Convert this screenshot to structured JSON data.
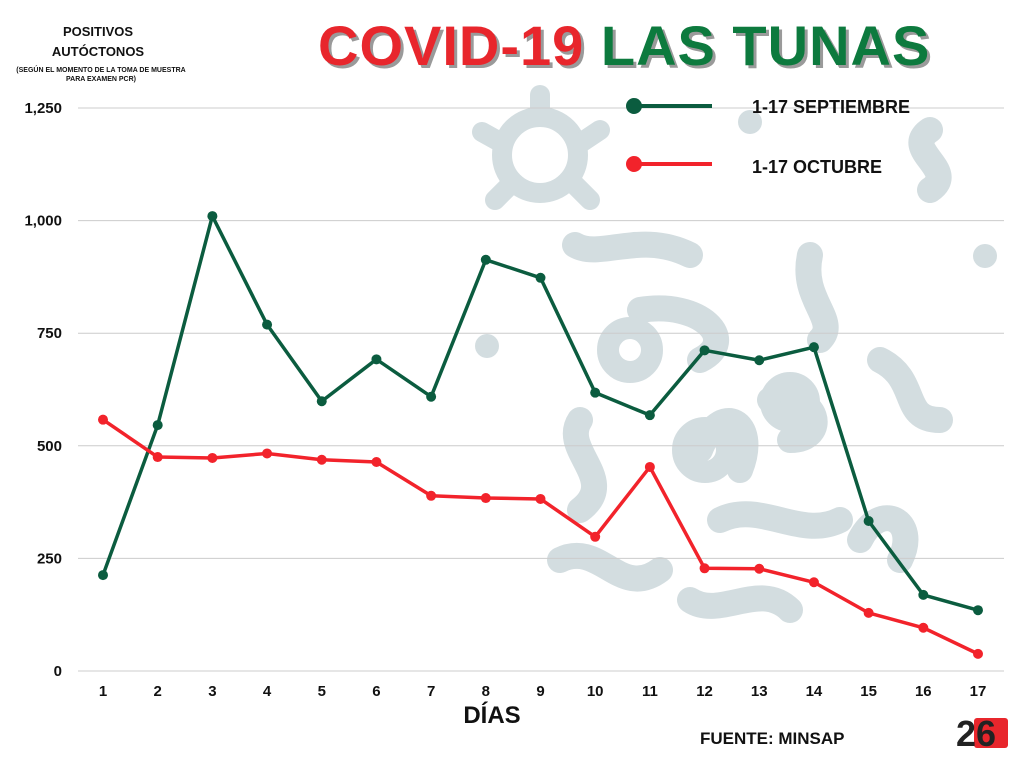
{
  "header": {
    "title_part1": "COVID-19",
    "title_part2": "LAS TUNAS",
    "ylabel_main": "POSITIVOS AUTÓCTONOS",
    "ylabel_note": "(SEGÚN EL MOMENTO DE LA TOMA DE MUESTRA PARA EXAMEN PCR)"
  },
  "footer": {
    "source": "FUENTE: MINSAP",
    "logo_text": "26"
  },
  "colors": {
    "september": "#0b5c3f",
    "october": "#f2232b",
    "grid": "#cccccc",
    "watermark": "#d3dde0"
  },
  "chart_data": {
    "type": "line",
    "title": "COVID-19 LAS TUNAS",
    "xlabel": "DÍAS",
    "ylabel": "POSITIVOS AUTÓCTONOS",
    "categories": [
      "1",
      "2",
      "3",
      "4",
      "5",
      "6",
      "7",
      "8",
      "9",
      "10",
      "11",
      "12",
      "13",
      "14",
      "15",
      "16",
      "17"
    ],
    "yticks": [
      0,
      250,
      500,
      750,
      1000,
      1250
    ],
    "ytick_labels": [
      "0",
      "250",
      "500",
      "750",
      "1,000",
      "1,250"
    ],
    "ylim": [
      0,
      1250
    ],
    "grid": "horizontal",
    "legend_position": "top-right",
    "series": [
      {
        "name": "1-17 SEPTIEMBRE",
        "color": "#0b5c3f",
        "values": [
          213,
          546,
          1010,
          769,
          599,
          692,
          609,
          913,
          873,
          618,
          568,
          712,
          690,
          719,
          333,
          169,
          135
        ]
      },
      {
        "name": "1-17 OCTUBRE",
        "color": "#f2232b",
        "values": [
          558,
          475,
          473,
          483,
          469,
          464,
          389,
          384,
          382,
          298,
          453,
          228,
          227,
          197,
          129,
          96,
          38
        ]
      }
    ]
  }
}
